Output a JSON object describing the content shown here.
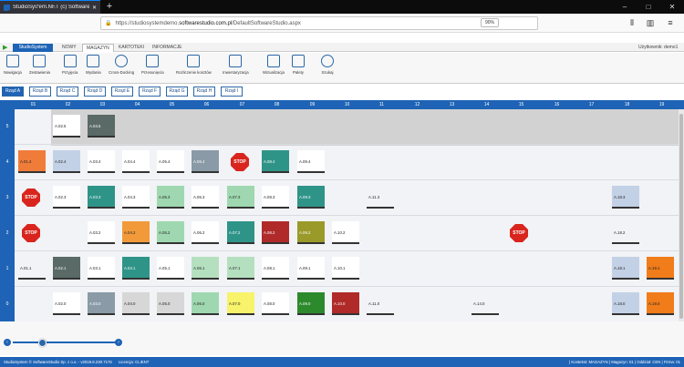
{
  "browser": {
    "tab_title": "StudioSystem.NET (c) Software",
    "url_prefix": "https://studiosystemdemo.",
    "url_domain": "softwarestudio.com.pl",
    "url_path": "/DefaultSoftwareStudio.aspx",
    "zoom": "90%"
  },
  "app": {
    "logo": "StudioSystem",
    "tabs": [
      "NOWY",
      "MAGAZYN",
      "KARTOTEKI",
      "INFORMACJE"
    ],
    "user": "Użytkownik: demo1"
  },
  "ribbon": [
    "Nawigacja",
    "Zestawienia",
    "Przyjęcia",
    "Wydania",
    "Cross-Docking",
    "Przesunięcia",
    "Rozliczenie kosztów",
    "Inwentaryzacja",
    "Wizualizacja",
    "Palety",
    "Szukaj"
  ],
  "rows": [
    "Rząd A",
    "Rząd B",
    "Rząd C",
    "Rząd D",
    "Rząd E",
    "Rząd F",
    "Rząd G",
    "Rząd H",
    "Rząd I"
  ],
  "columns": [
    "01",
    "02",
    "03",
    "04",
    "05",
    "06",
    "07",
    "08",
    "09",
    "10",
    "11",
    "12",
    "13",
    "14",
    "15",
    "16",
    "17",
    "18",
    "19"
  ],
  "levels": [
    "5",
    "4",
    "3",
    "2",
    "1",
    "0"
  ],
  "status": {
    "left": "StudioSystem © SoftwareStudio Sp. z o.o. - v2019.8.230.7176",
    "license": "Licencja: CLIENT",
    "right": "| Kontekst: MAGAZYN | Magazyn: 01 | Oddział: CEN | Firma: 01"
  },
  "colors": {
    "accent": "#1e63b5",
    "stop": "#d9251d"
  }
}
